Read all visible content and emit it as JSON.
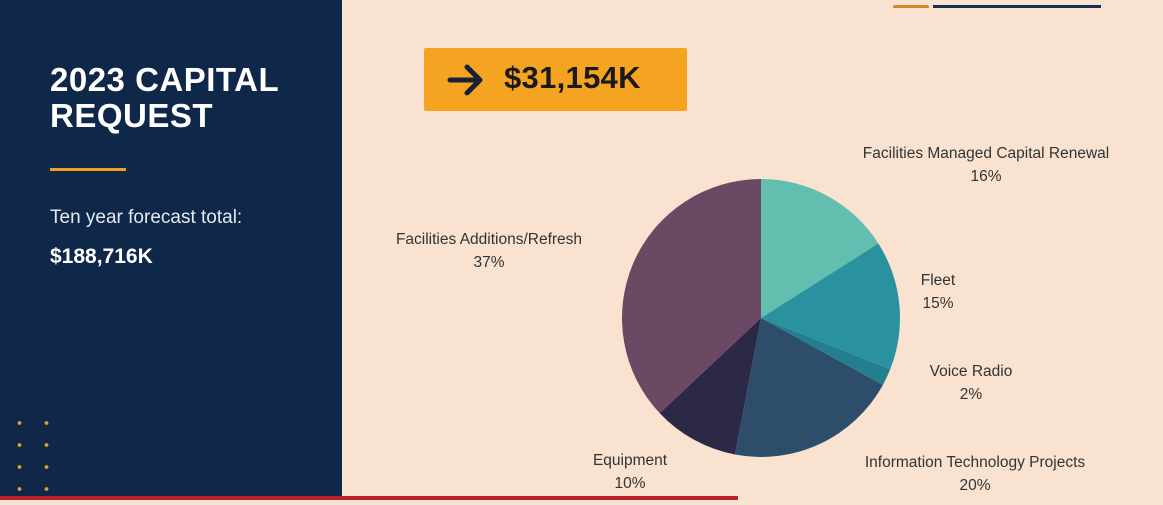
{
  "slide": {
    "title": "2023 CAPITAL REQUEST",
    "forecast_label": "Ten year forecast total:",
    "forecast_total": "$188,716K",
    "request_amount": "$31,154K"
  },
  "chart_data": {
    "type": "pie",
    "slices": [
      {
        "label": "Facilities Managed Capital Renewal",
        "value": 16,
        "percent_label": "16%",
        "color": "#62bfb0"
      },
      {
        "label": "Fleet",
        "value": 15,
        "percent_label": "15%",
        "color": "#2a929f"
      },
      {
        "label": "Voice Radio",
        "value": 2,
        "percent_label": "2%",
        "color": "#237f8f"
      },
      {
        "label": "Information Technology Projects",
        "value": 20,
        "percent_label": "20%",
        "color": "#2d4d6a"
      },
      {
        "label": "Equipment",
        "value": 10,
        "percent_label": "10%",
        "color": "#2c2946"
      },
      {
        "label": "Facilities Additions/Refresh",
        "value": 37,
        "percent_label": "37%",
        "color": "#6b4863"
      }
    ]
  },
  "colors": {
    "navy_panel": "#0f2748",
    "accent_orange": "#f5a421",
    "background": "#f9e2cf"
  }
}
